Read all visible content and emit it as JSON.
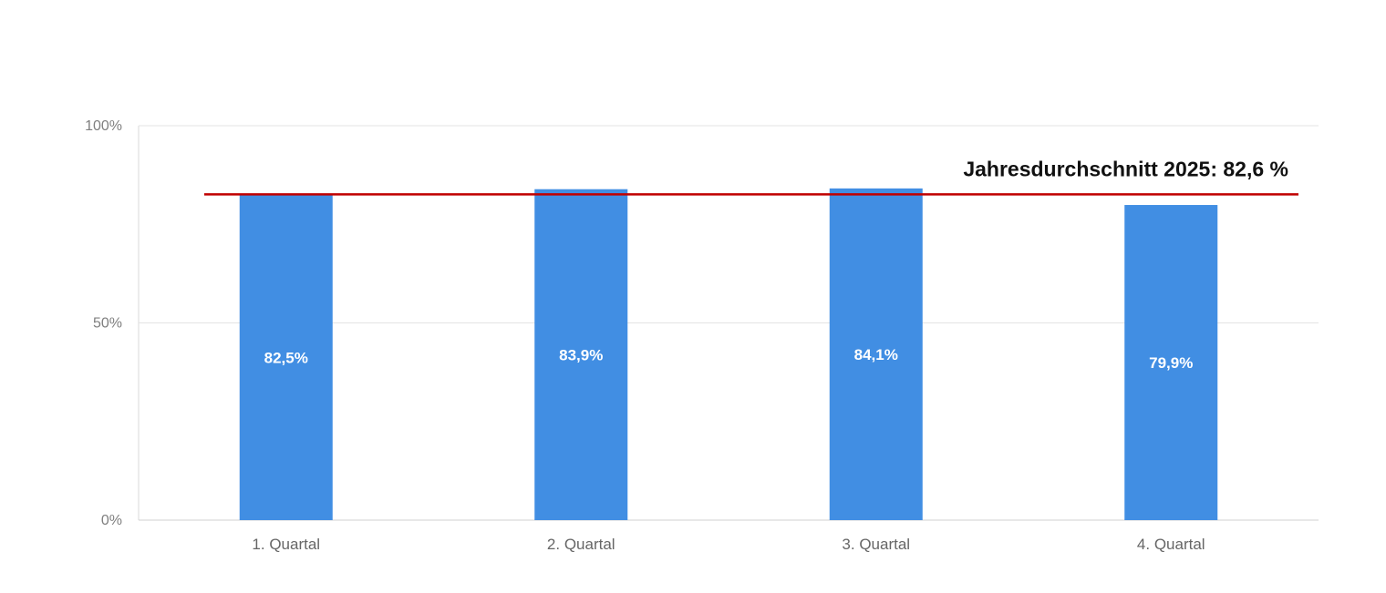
{
  "chart_data": {
    "type": "bar",
    "categories": [
      "1. Quartal",
      "2. Quartal",
      "3. Quartal",
      "4. Quartal"
    ],
    "values": [
      82.5,
      83.9,
      84.1,
      79.9
    ],
    "value_labels": [
      "82,5%",
      "83,9%",
      "84,1%",
      "79,9%"
    ],
    "ylim": [
      0,
      100
    ],
    "y_ticks": [
      0,
      50,
      100
    ],
    "y_tick_labels": [
      "0%",
      "50%",
      "100%"
    ],
    "grid": true,
    "reference_line": {
      "value": 82.6,
      "label": "Jahresdurchschnitt 2025: 82,6 %",
      "color": "#c00000"
    },
    "bar_color": "#418ee3",
    "title": "",
    "xlabel": "",
    "ylabel": ""
  }
}
